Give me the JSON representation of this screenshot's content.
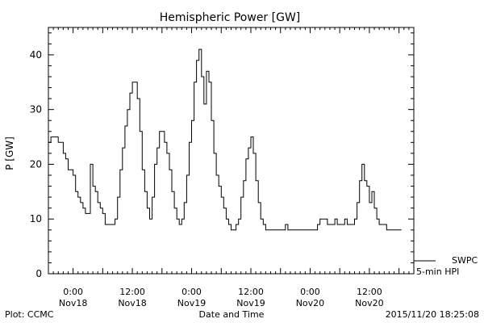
{
  "chart_data": {
    "type": "line",
    "title": "Hemispheric Power [GW]",
    "ylabel": "P [GW]",
    "xlabel": "Date and Time",
    "ylim": [
      0,
      45
    ],
    "xlim": [
      "2015-11-17T19:00",
      "2015-11-20T21:00"
    ],
    "yticks": [
      0,
      10,
      20,
      30,
      40
    ],
    "xticks": [
      {
        "time": "2015-11-18T00:00",
        "hour": "0:00",
        "date": "Nov18"
      },
      {
        "time": "2015-11-18T12:00",
        "hour": "12:00",
        "date": "Nov18"
      },
      {
        "time": "2015-11-19T00:00",
        "hour": "0:00",
        "date": "Nov19"
      },
      {
        "time": "2015-11-19T12:00",
        "hour": "12:00",
        "date": "Nov19"
      },
      {
        "time": "2015-11-20T00:00",
        "hour": "0:00",
        "date": "Nov20"
      },
      {
        "time": "2015-11-20T12:00",
        "hour": "12:00",
        "date": "Nov20"
      }
    ],
    "grid": false,
    "legend_position": "bottom-right",
    "series": [
      {
        "name": "SWPC",
        "label": "5-min HPI",
        "color": "#000000",
        "points": [
          [
            "2015-11-17T19:00",
            24
          ],
          [
            "2015-11-17T19:30",
            25
          ],
          [
            "2015-11-17T20:30",
            25
          ],
          [
            "2015-11-17T21:00",
            24
          ],
          [
            "2015-11-17T21:30",
            24
          ],
          [
            "2015-11-17T22:00",
            22
          ],
          [
            "2015-11-17T22:30",
            21
          ],
          [
            "2015-11-17T23:00",
            19
          ],
          [
            "2015-11-17T23:30",
            19
          ],
          [
            "2015-11-18T00:00",
            18
          ],
          [
            "2015-11-18T00:30",
            15
          ],
          [
            "2015-11-18T01:00",
            14
          ],
          [
            "2015-11-18T01:30",
            13
          ],
          [
            "2015-11-18T02:00",
            12
          ],
          [
            "2015-11-18T02:30",
            11
          ],
          [
            "2015-11-18T03:00",
            11
          ],
          [
            "2015-11-18T03:30",
            20
          ],
          [
            "2015-11-18T04:00",
            16
          ],
          [
            "2015-11-18T04:30",
            15
          ],
          [
            "2015-11-18T05:00",
            13
          ],
          [
            "2015-11-18T05:30",
            12
          ],
          [
            "2015-11-18T06:00",
            11
          ],
          [
            "2015-11-18T06:30",
            9
          ],
          [
            "2015-11-18T08:00",
            9
          ],
          [
            "2015-11-18T08:30",
            10
          ],
          [
            "2015-11-18T09:00",
            14
          ],
          [
            "2015-11-18T09:30",
            19
          ],
          [
            "2015-11-18T10:00",
            23
          ],
          [
            "2015-11-18T10:30",
            27
          ],
          [
            "2015-11-18T11:00",
            30
          ],
          [
            "2015-11-18T11:30",
            33
          ],
          [
            "2015-11-18T12:00",
            35
          ],
          [
            "2015-11-18T12:30",
            35
          ],
          [
            "2015-11-18T13:00",
            32
          ],
          [
            "2015-11-18T13:30",
            26
          ],
          [
            "2015-11-18T14:00",
            19
          ],
          [
            "2015-11-18T14:30",
            15
          ],
          [
            "2015-11-18T15:00",
            12
          ],
          [
            "2015-11-18T15:30",
            10
          ],
          [
            "2015-11-18T16:00",
            14
          ],
          [
            "2015-11-18T16:30",
            20
          ],
          [
            "2015-11-18T17:00",
            23
          ],
          [
            "2015-11-18T17:30",
            26
          ],
          [
            "2015-11-18T18:00",
            26
          ],
          [
            "2015-11-18T18:30",
            24
          ],
          [
            "2015-11-18T19:00",
            22
          ],
          [
            "2015-11-18T19:30",
            19
          ],
          [
            "2015-11-18T20:00",
            15
          ],
          [
            "2015-11-18T20:30",
            12
          ],
          [
            "2015-11-18T21:00",
            10
          ],
          [
            "2015-11-18T21:30",
            9
          ],
          [
            "2015-11-18T22:00",
            10
          ],
          [
            "2015-11-18T22:30",
            13
          ],
          [
            "2015-11-18T23:00",
            18
          ],
          [
            "2015-11-18T23:30",
            24
          ],
          [
            "2015-11-19T00:00",
            28
          ],
          [
            "2015-11-19T00:30",
            35
          ],
          [
            "2015-11-19T01:00",
            39
          ],
          [
            "2015-11-19T01:30",
            41
          ],
          [
            "2015-11-19T02:00",
            36
          ],
          [
            "2015-11-19T02:30",
            31
          ],
          [
            "2015-11-19T03:00",
            37
          ],
          [
            "2015-11-19T03:30",
            35
          ],
          [
            "2015-11-19T04:00",
            28
          ],
          [
            "2015-11-19T04:30",
            22
          ],
          [
            "2015-11-19T05:00",
            18
          ],
          [
            "2015-11-19T05:30",
            16
          ],
          [
            "2015-11-19T06:00",
            14
          ],
          [
            "2015-11-19T06:30",
            12
          ],
          [
            "2015-11-19T07:00",
            10
          ],
          [
            "2015-11-19T07:30",
            9
          ],
          [
            "2015-11-19T08:00",
            8
          ],
          [
            "2015-11-19T08:30",
            8
          ],
          [
            "2015-11-19T09:00",
            9
          ],
          [
            "2015-11-19T09:30",
            10
          ],
          [
            "2015-11-19T10:00",
            14
          ],
          [
            "2015-11-19T10:30",
            17
          ],
          [
            "2015-11-19T11:00",
            21
          ],
          [
            "2015-11-19T11:30",
            23
          ],
          [
            "2015-11-19T12:00",
            25
          ],
          [
            "2015-11-19T12:30",
            22
          ],
          [
            "2015-11-19T13:00",
            17
          ],
          [
            "2015-11-19T13:30",
            13
          ],
          [
            "2015-11-19T14:00",
            10
          ],
          [
            "2015-11-19T14:30",
            9
          ],
          [
            "2015-11-19T15:00",
            8
          ],
          [
            "2015-11-19T18:30",
            8
          ],
          [
            "2015-11-19T19:00",
            9
          ],
          [
            "2015-11-19T19:30",
            8
          ],
          [
            "2015-11-20T01:00",
            8
          ],
          [
            "2015-11-20T01:30",
            9
          ],
          [
            "2015-11-20T02:00",
            10
          ],
          [
            "2015-11-20T03:00",
            10
          ],
          [
            "2015-11-20T03:30",
            9
          ],
          [
            "2015-11-20T04:30",
            9
          ],
          [
            "2015-11-20T05:00",
            10
          ],
          [
            "2015-11-20T05:30",
            9
          ],
          [
            "2015-11-20T06:30",
            9
          ],
          [
            "2015-11-20T07:00",
            10
          ],
          [
            "2015-11-20T07:30",
            9
          ],
          [
            "2015-11-20T08:30",
            9
          ],
          [
            "2015-11-20T09:00",
            10
          ],
          [
            "2015-11-20T09:30",
            13
          ],
          [
            "2015-11-20T10:00",
            17
          ],
          [
            "2015-11-20T10:30",
            20
          ],
          [
            "2015-11-20T11:00",
            17
          ],
          [
            "2015-11-20T11:30",
            16
          ],
          [
            "2015-11-20T12:00",
            13
          ],
          [
            "2015-11-20T12:30",
            15
          ],
          [
            "2015-11-20T13:00",
            12
          ],
          [
            "2015-11-20T13:30",
            10
          ],
          [
            "2015-11-20T14:00",
            9
          ],
          [
            "2015-11-20T15:00",
            9
          ],
          [
            "2015-11-20T15:30",
            8
          ],
          [
            "2015-11-20T18:30",
            8
          ]
        ]
      }
    ]
  },
  "footer": {
    "left": "Plot: CCMC",
    "center": "Date and Time",
    "right": "2015/11/20 18:25:08"
  }
}
